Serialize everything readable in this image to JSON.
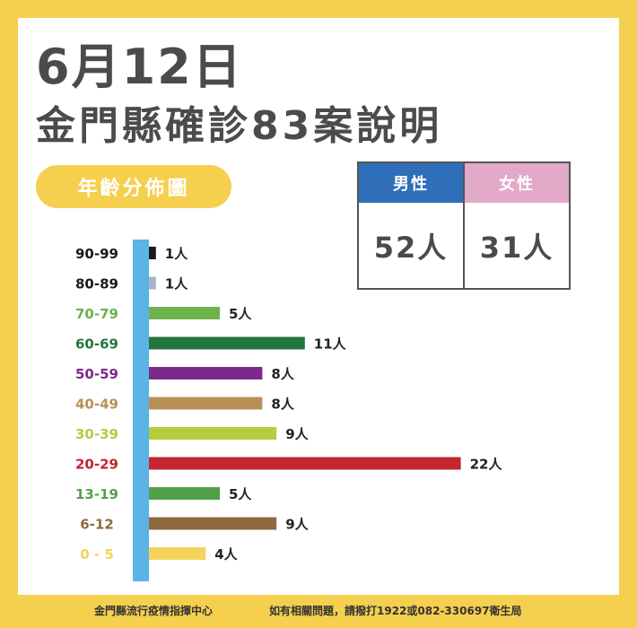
{
  "title_line1": "6月12日",
  "title_line2": "金門縣確診83案說明",
  "badge": "年齡分佈圖",
  "gender": {
    "male_label": "男性",
    "male_value": "52人",
    "female_label": "女性",
    "female_value": "31人",
    "male_color": "#2f6fba",
    "female_color": "#e2a9c9"
  },
  "chart_data": {
    "type": "bar",
    "orientation": "horizontal",
    "categories": [
      "90-99",
      "80-89",
      "70-79",
      "60-69",
      "50-59",
      "40-49",
      "30-39",
      "20-29",
      "13-19",
      "6-12",
      "0 - 5"
    ],
    "values": [
      1,
      1,
      5,
      11,
      8,
      8,
      9,
      22,
      5,
      9,
      4
    ],
    "value_labels": [
      "1人",
      "1人",
      "5人",
      "11人",
      "8人",
      "8人",
      "9人",
      "22人",
      "5人",
      "9人",
      "4人"
    ],
    "colors": [
      "#1a1a1a",
      "#a9b3c9",
      "#6db24c",
      "#23773e",
      "#7b2a8c",
      "#b99054",
      "#b6cc3e",
      "#c4252f",
      "#52a04a",
      "#8e6a3d",
      "#f3d35c"
    ],
    "axis_color": "#5ab4e5",
    "legend": "none",
    "grid": false
  },
  "footer": {
    "left": "金門縣流行疫情指揮中心",
    "right": "如有相關問題，請撥打1922或082-330697衛生局"
  }
}
